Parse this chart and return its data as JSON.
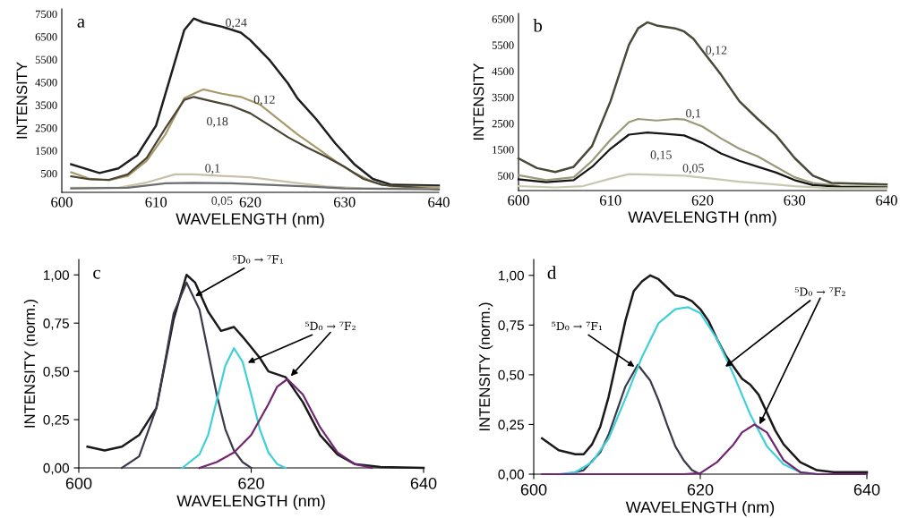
{
  "chart_data": [
    {
      "type": "line",
      "title": "a",
      "xlabel": "WAVELENGTH (nm)",
      "ylabel": "INTENSITY",
      "xlim": [
        600,
        640
      ],
      "xticks": [
        600,
        610,
        620,
        630,
        640
      ],
      "ylim": [
        -330,
        7720
      ],
      "yticks": [
        500,
        1500,
        2500,
        3500,
        4500,
        5500,
        6500,
        7500
      ],
      "grid": false,
      "legend": false,
      "marker": "none",
      "line_style": "solid",
      "series": [
        {
          "name": "0,24",
          "color": "#1e1e1e",
          "x": [
            601,
            604,
            606,
            608,
            610,
            611.5,
            613,
            614,
            615,
            617,
            619,
            620,
            622,
            624,
            625,
            627,
            629,
            631,
            633,
            635,
            640
          ],
          "values": [
            900,
            520,
            720,
            1300,
            2600,
            4700,
            6800,
            7300,
            7130,
            6940,
            6680,
            6350,
            5500,
            4450,
            3800,
            2880,
            1830,
            920,
            260,
            0,
            -30
          ]
        },
        {
          "name": "0,12",
          "color": "#a89a6a",
          "x": [
            601,
            603,
            605,
            607,
            609,
            611,
            613,
            614,
            615,
            617,
            619,
            621,
            623,
            625,
            627,
            629,
            631,
            633,
            635,
            640
          ],
          "values": [
            550,
            260,
            200,
            390,
            1050,
            2220,
            3800,
            4000,
            4190,
            4000,
            3860,
            3530,
            2880,
            2220,
            1640,
            1050,
            520,
            130,
            -70,
            -100
          ]
        },
        {
          "name": "0,18",
          "color": "#4a4535",
          "x": [
            601,
            603,
            605,
            607,
            609,
            611,
            613,
            614,
            616,
            618,
            620,
            622,
            624,
            626,
            628,
            630,
            632,
            634,
            640
          ],
          "values": [
            370,
            240,
            220,
            460,
            1180,
            2490,
            3730,
            3860,
            3660,
            3470,
            3140,
            2620,
            2090,
            1640,
            1240,
            790,
            260,
            0,
            -200
          ]
        },
        {
          "name": "0,1",
          "color": "#c8c0a8",
          "x": [
            601,
            606,
            609,
            612,
            614,
            617,
            620,
            624,
            628,
            632,
            640
          ],
          "values": [
            -130,
            -130,
            100,
            460,
            460,
            390,
            330,
            130,
            -70,
            -160,
            -170
          ]
        },
        {
          "name": "0,05",
          "color": "#6e6e6e",
          "x": [
            601,
            607,
            611,
            614,
            618,
            622,
            626,
            630,
            640
          ],
          "values": [
            -160,
            -130,
            70,
            90,
            70,
            0,
            -70,
            -160,
            -200
          ]
        }
      ]
    },
    {
      "type": "line",
      "title": "b",
      "xlabel": "WAVELENGTH (nm)",
      "ylabel": "INTENSITY",
      "xlim": [
        600,
        640
      ],
      "xticks": [
        600,
        610,
        620,
        630,
        640
      ],
      "ylim": [
        -70,
        6710
      ],
      "yticks": [
        500,
        1500,
        2500,
        3500,
        4500,
        5500,
        6500
      ],
      "grid": false,
      "legend": false,
      "marker": "none",
      "line_style": "solid",
      "series": [
        {
          "name": "0,12",
          "color": "#4a4a3a",
          "x": [
            600,
            602,
            604,
            606,
            608,
            610,
            612,
            613,
            614,
            615,
            617,
            618,
            619,
            620,
            622,
            624,
            626,
            628,
            630,
            632,
            634,
            640
          ],
          "values": [
            1160,
            790,
            640,
            840,
            1640,
            3350,
            5510,
            6140,
            6370,
            6250,
            6140,
            6020,
            5740,
            5280,
            4370,
            3350,
            2670,
            2040,
            1180,
            500,
            220,
            160
          ]
        },
        {
          "name": "0,1",
          "color": "#9a9a7a",
          "x": [
            600,
            603,
            606,
            608,
            610,
            612,
            613,
            615,
            617,
            618,
            620,
            622,
            624,
            626,
            628,
            630,
            632,
            635,
            640
          ],
          "values": [
            520,
            330,
            440,
            1070,
            1870,
            2550,
            2670,
            2610,
            2670,
            2650,
            2380,
            1930,
            1530,
            1240,
            840,
            440,
            220,
            100,
            70
          ]
        },
        {
          "name": "0,15",
          "color": "#151515",
          "x": [
            600,
            603,
            606,
            608,
            610,
            612,
            614,
            616,
            618,
            620,
            622,
            624,
            626,
            628,
            630,
            632,
            635,
            640
          ],
          "values": [
            360,
            250,
            330,
            840,
            1530,
            2070,
            2150,
            2100,
            2040,
            1750,
            1350,
            1070,
            840,
            620,
            330,
            140,
            70,
            50
          ]
        },
        {
          "name": "0,05",
          "color": "#c8c8b0",
          "x": [
            600,
            604,
            607,
            610,
            612,
            614,
            618,
            621,
            624,
            627,
            630,
            634,
            640
          ],
          "values": [
            100,
            50,
            100,
            390,
            560,
            540,
            500,
            390,
            270,
            190,
            100,
            20,
            20
          ]
        }
      ]
    },
    {
      "type": "line",
      "title": "c",
      "xlabel": "WAVELENGTH (nm)",
      "ylabel": "INTENSITY (norm.)",
      "xlim": [
        600,
        640
      ],
      "xticks": [
        600,
        620,
        640
      ],
      "ylim": [
        0,
        1.08
      ],
      "yticks": [
        {
          "value": 0,
          "label": "0,00"
        },
        {
          "value": 0.25,
          "label": "0,25"
        },
        {
          "value": 0.5,
          "label": "0,50"
        },
        {
          "value": 0.75,
          "label": "0,75"
        },
        {
          "value": 1,
          "label": "1,00"
        }
      ],
      "grid": false,
      "legend": false,
      "marker": "none",
      "line_style": "solid",
      "series": [
        {
          "color": "#1a1a1a",
          "x": [
            601,
            603,
            605,
            607,
            609,
            611,
            612.5,
            613.5,
            615,
            616.5,
            618,
            619,
            621,
            622,
            624,
            626,
            628,
            630,
            632,
            635,
            640
          ],
          "values": [
            0.11,
            0.09,
            0.11,
            0.17,
            0.31,
            0.77,
            1.0,
            0.96,
            0.81,
            0.71,
            0.73,
            0.68,
            0.57,
            0.5,
            0.47,
            0.34,
            0.17,
            0.07,
            0.02,
            0.005,
            0
          ]
        },
        {
          "color": "#3a3a4a",
          "x": [
            605,
            607,
            609,
            610,
            611,
            612.5,
            614,
            615,
            616,
            617,
            618,
            619,
            620
          ],
          "values": [
            0,
            0.06,
            0.31,
            0.55,
            0.8,
            0.96,
            0.82,
            0.6,
            0.38,
            0.2,
            0.09,
            0.03,
            0
          ]
        },
        {
          "color": "#40d0d8",
          "x": [
            612,
            614,
            615,
            616,
            617,
            618,
            619,
            620,
            621,
            622,
            623,
            624
          ],
          "values": [
            0,
            0.07,
            0.17,
            0.35,
            0.53,
            0.62,
            0.55,
            0.38,
            0.2,
            0.08,
            0.02,
            0
          ]
        },
        {
          "color": "#702870",
          "x": [
            614,
            616,
            618,
            620,
            622,
            623,
            624.2,
            626,
            628,
            630,
            632,
            634
          ],
          "values": [
            0,
            0.03,
            0.08,
            0.17,
            0.33,
            0.42,
            0.46,
            0.38,
            0.21,
            0.08,
            0.02,
            0
          ]
        }
      ],
      "annotations": [
        {
          "text": "⁵D₀ → ⁷F₁",
          "x": 613.5,
          "y": 0.89
        },
        {
          "text": "⁵D₀ → ⁷F₂",
          "x": 619.6,
          "y": 0.545
        }
      ]
    },
    {
      "type": "line",
      "title": "d",
      "xlabel": "WAVELENGTH (nm)",
      "ylabel": "INTENSITY (norm.)",
      "xlim": [
        600,
        640
      ],
      "xticks": [
        600,
        620,
        640
      ],
      "ylim": [
        0,
        1.08
      ],
      "yticks": [
        {
          "value": 0,
          "label": "0,00"
        },
        {
          "value": 0.25,
          "label": "0,25"
        },
        {
          "value": 0.5,
          "label": "0,50"
        },
        {
          "value": 0.75,
          "label": "0,75"
        },
        {
          "value": 1,
          "label": "1,00"
        }
      ],
      "grid": false,
      "legend": false,
      "marker": "none",
      "line_style": "solid",
      "series": [
        {
          "color": "#1a1a1a",
          "x": [
            601,
            603,
            605,
            606,
            607,
            608,
            609,
            610,
            611,
            612,
            613,
            614,
            615,
            616,
            617,
            618,
            619,
            620,
            621,
            622,
            623,
            624,
            625,
            626,
            627,
            628,
            629,
            630,
            632,
            634,
            636,
            640
          ],
          "values": [
            0.18,
            0.12,
            0.1,
            0.1,
            0.15,
            0.24,
            0.39,
            0.58,
            0.77,
            0.92,
            0.97,
            1.0,
            0.98,
            0.94,
            0.9,
            0.89,
            0.87,
            0.83,
            0.77,
            0.68,
            0.6,
            0.54,
            0.48,
            0.45,
            0.4,
            0.31,
            0.22,
            0.15,
            0.06,
            0.02,
            0.01,
            0.01
          ]
        },
        {
          "color": "#3a3a4a",
          "x": [
            604,
            606,
            608,
            609,
            610,
            611,
            612.5,
            614,
            615,
            616,
            617,
            618,
            619,
            620
          ],
          "values": [
            0,
            0.02,
            0.11,
            0.2,
            0.32,
            0.44,
            0.55,
            0.47,
            0.37,
            0.25,
            0.14,
            0.07,
            0.02,
            0
          ]
        },
        {
          "color": "#40d0d8",
          "x": [
            603,
            605,
            607,
            609,
            611,
            613,
            615,
            617,
            618.5,
            620,
            622,
            624,
            626,
            628,
            630,
            632,
            634
          ],
          "values": [
            0,
            0.01,
            0.06,
            0.18,
            0.38,
            0.59,
            0.76,
            0.83,
            0.84,
            0.81,
            0.68,
            0.5,
            0.3,
            0.14,
            0.05,
            0.01,
            0
          ]
        },
        {
          "color": "#702870",
          "x": [
            601,
            618,
            620,
            622,
            624,
            625,
            626.5,
            628,
            629,
            630,
            632,
            634,
            640
          ],
          "values": [
            0,
            0,
            0.005,
            0.06,
            0.15,
            0.21,
            0.25,
            0.21,
            0.14,
            0.07,
            0.01,
            0,
            0
          ]
        }
      ],
      "annotations": [
        {
          "text": "⁵D₀ → ⁷F₁",
          "x": 612.1,
          "y": 0.54
        },
        {
          "text": "⁵D₀ → ⁷F₂",
          "x": 623.0,
          "y": 0.54
        }
      ]
    }
  ]
}
